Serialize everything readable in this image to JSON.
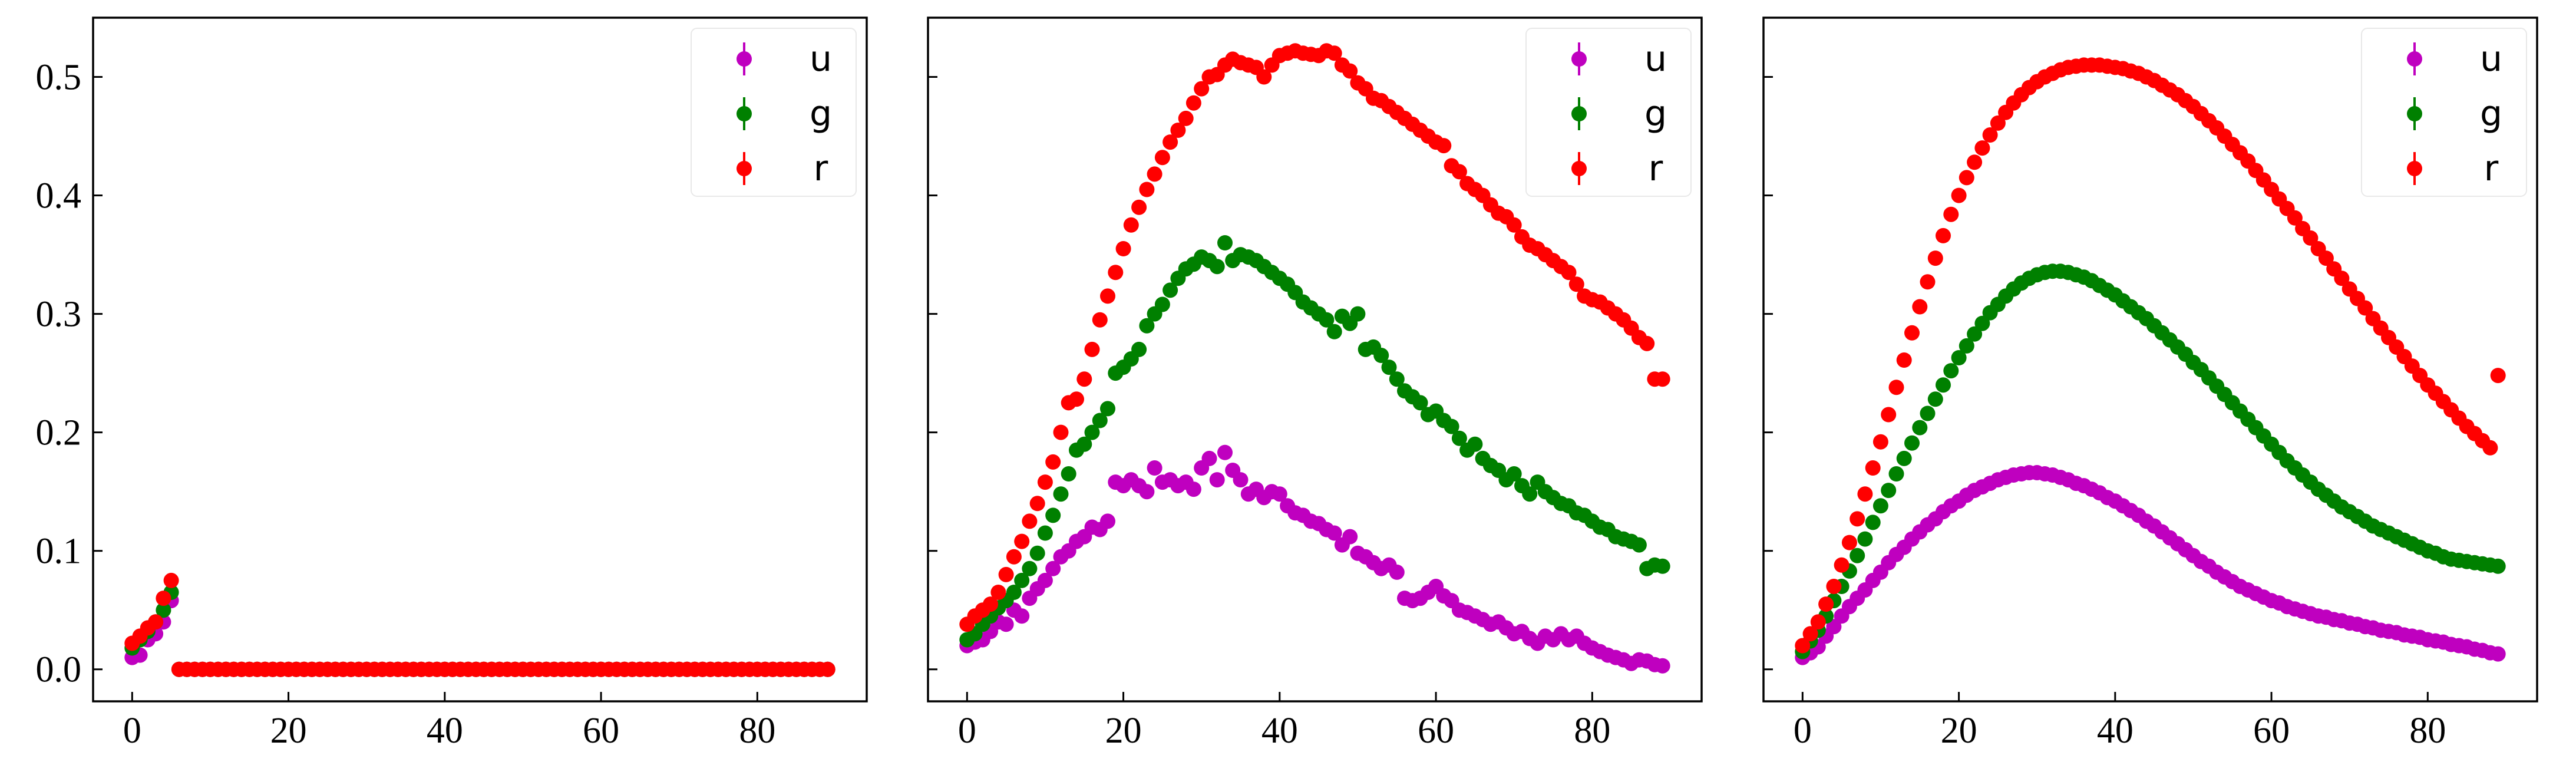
{
  "chart_data": [
    {
      "type": "scatter",
      "panel": 1,
      "title": "",
      "xlabel": "",
      "ylabel": "",
      "xlim": [
        -5,
        94
      ],
      "ylim": [
        -0.027,
        0.55
      ],
      "xticks": [
        0,
        20,
        40,
        60,
        80
      ],
      "yticks": [
        0.0,
        0.1,
        0.2,
        0.3,
        0.4,
        0.5
      ],
      "grid": false,
      "legend_position": "top-right",
      "x": {
        "start": 0,
        "step": 1,
        "count": 90
      },
      "series": [
        {
          "name": "u",
          "color": "#bf00bf",
          "values": [
            0.01,
            0.012,
            0.025,
            0.03,
            0.04,
            0.058,
            0,
            0,
            0,
            0,
            0,
            0,
            0,
            0,
            0,
            0,
            0,
            0,
            0,
            0,
            0,
            0,
            0,
            0,
            0,
            0,
            0,
            0,
            0,
            0,
            0,
            0,
            0,
            0,
            0,
            0,
            0,
            0,
            0,
            0,
            0,
            0,
            0,
            0,
            0,
            0,
            0,
            0,
            0,
            0,
            0,
            0,
            0,
            0,
            0,
            0,
            0,
            0,
            0,
            0,
            0,
            0,
            0,
            0,
            0,
            0,
            0,
            0,
            0,
            0,
            0,
            0,
            0,
            0,
            0,
            0,
            0,
            0,
            0,
            0,
            0,
            0,
            0,
            0,
            0,
            0,
            0,
            0,
            0,
            0
          ]
        },
        {
          "name": "g",
          "color": "#008000",
          "values": [
            0.018,
            0.025,
            0.032,
            0.04,
            0.05,
            0.065,
            0,
            0,
            0,
            0,
            0,
            0,
            0,
            0,
            0,
            0,
            0,
            0,
            0,
            0,
            0,
            0,
            0,
            0,
            0,
            0,
            0,
            0,
            0,
            0,
            0,
            0,
            0,
            0,
            0,
            0,
            0,
            0,
            0,
            0,
            0,
            0,
            0,
            0,
            0,
            0,
            0,
            0,
            0,
            0,
            0,
            0,
            0,
            0,
            0,
            0,
            0,
            0,
            0,
            0,
            0,
            0,
            0,
            0,
            0,
            0,
            0,
            0,
            0,
            0,
            0,
            0,
            0,
            0,
            0,
            0,
            0,
            0,
            0,
            0,
            0,
            0,
            0,
            0,
            0,
            0,
            0,
            0,
            0,
            0
          ]
        },
        {
          "name": "r",
          "color": "#ff0000",
          "values": [
            0.022,
            0.028,
            0.035,
            0.04,
            0.06,
            0.075,
            0,
            0,
            0,
            0,
            0,
            0,
            0,
            0,
            0,
            0,
            0,
            0,
            0,
            0,
            0,
            0,
            0,
            0,
            0,
            0,
            0,
            0,
            0,
            0,
            0,
            0,
            0,
            0,
            0,
            0,
            0,
            0,
            0,
            0,
            0,
            0,
            0,
            0,
            0,
            0,
            0,
            0,
            0,
            0,
            0,
            0,
            0,
            0,
            0,
            0,
            0,
            0,
            0,
            0,
            0,
            0,
            0,
            0,
            0,
            0,
            0,
            0,
            0,
            0,
            0,
            0,
            0,
            0,
            0,
            0,
            0,
            0,
            0,
            0,
            0,
            0,
            0,
            0,
            0,
            0,
            0,
            0,
            0,
            0
          ]
        }
      ]
    },
    {
      "type": "scatter",
      "panel": 2,
      "title": "",
      "xlabel": "",
      "ylabel": "",
      "xlim": [
        -5,
        94
      ],
      "ylim": [
        -0.027,
        0.55
      ],
      "xticks": [
        0,
        20,
        40,
        60,
        80
      ],
      "yticks": [
        0.0,
        0.1,
        0.2,
        0.3,
        0.4,
        0.5
      ],
      "grid": false,
      "legend_position": "top-right",
      "x": {
        "start": 0,
        "step": 1,
        "count": 90
      },
      "series": [
        {
          "name": "u",
          "color": "#bf00bf",
          "values": [
            0.02,
            0.023,
            0.025,
            0.032,
            0.04,
            0.038,
            0.05,
            0.045,
            0.06,
            0.068,
            0.075,
            0.085,
            0.095,
            0.1,
            0.108,
            0.112,
            0.12,
            0.118,
            0.125,
            0.158,
            0.155,
            0.16,
            0.155,
            0.15,
            0.17,
            0.158,
            0.16,
            0.155,
            0.158,
            0.152,
            0.17,
            0.178,
            0.16,
            0.183,
            0.168,
            0.16,
            0.148,
            0.152,
            0.145,
            0.15,
            0.148,
            0.138,
            0.132,
            0.13,
            0.125,
            0.123,
            0.118,
            0.115,
            0.105,
            0.112,
            0.098,
            0.095,
            0.09,
            0.085,
            0.088,
            0.082,
            0.06,
            0.058,
            0.06,
            0.065,
            0.07,
            0.062,
            0.058,
            0.05,
            0.048,
            0.045,
            0.042,
            0.038,
            0.04,
            0.035,
            0.03,
            0.032,
            0.026,
            0.022,
            0.028,
            0.025,
            0.03,
            0.025,
            0.028,
            0.022,
            0.018,
            0.015,
            0.012,
            0.01,
            0.008,
            0.005,
            0.008,
            0.007,
            0.004,
            0.003
          ]
        },
        {
          "name": "g",
          "color": "#008000",
          "values": [
            0.025,
            0.03,
            0.038,
            0.045,
            0.052,
            0.058,
            0.065,
            0.075,
            0.085,
            0.098,
            0.115,
            0.13,
            0.148,
            0.165,
            0.185,
            0.19,
            0.2,
            0.21,
            0.22,
            0.25,
            0.255,
            0.262,
            0.27,
            0.29,
            0.3,
            0.308,
            0.32,
            0.33,
            0.338,
            0.342,
            0.348,
            0.345,
            0.34,
            0.36,
            0.345,
            0.35,
            0.348,
            0.345,
            0.34,
            0.335,
            0.33,
            0.325,
            0.318,
            0.31,
            0.305,
            0.3,
            0.295,
            0.285,
            0.298,
            0.292,
            0.3,
            0.27,
            0.272,
            0.265,
            0.255,
            0.245,
            0.235,
            0.23,
            0.225,
            0.215,
            0.218,
            0.21,
            0.205,
            0.195,
            0.185,
            0.19,
            0.178,
            0.172,
            0.168,
            0.16,
            0.165,
            0.155,
            0.148,
            0.158,
            0.15,
            0.145,
            0.14,
            0.138,
            0.132,
            0.13,
            0.125,
            0.12,
            0.118,
            0.112,
            0.11,
            0.108,
            0.105,
            0.085,
            0.088,
            0.087
          ]
        },
        {
          "name": "r",
          "color": "#ff0000",
          "values": [
            0.038,
            0.045,
            0.05,
            0.055,
            0.065,
            0.08,
            0.095,
            0.108,
            0.125,
            0.14,
            0.158,
            0.175,
            0.2,
            0.225,
            0.228,
            0.245,
            0.27,
            0.295,
            0.315,
            0.335,
            0.355,
            0.375,
            0.39,
            0.405,
            0.418,
            0.432,
            0.445,
            0.455,
            0.465,
            0.478,
            0.49,
            0.5,
            0.502,
            0.51,
            0.515,
            0.512,
            0.51,
            0.508,
            0.5,
            0.51,
            0.518,
            0.52,
            0.522,
            0.52,
            0.519,
            0.518,
            0.522,
            0.52,
            0.51,
            0.505,
            0.495,
            0.49,
            0.482,
            0.48,
            0.475,
            0.47,
            0.465,
            0.46,
            0.455,
            0.45,
            0.445,
            0.442,
            0.425,
            0.42,
            0.41,
            0.405,
            0.4,
            0.392,
            0.385,
            0.382,
            0.375,
            0.365,
            0.358,
            0.355,
            0.35,
            0.345,
            0.34,
            0.335,
            0.325,
            0.315,
            0.312,
            0.31,
            0.305,
            0.3,
            0.295,
            0.288,
            0.28,
            0.275,
            0.245,
            0.245
          ]
        }
      ]
    },
    {
      "type": "scatter",
      "panel": 3,
      "title": "",
      "xlabel": "",
      "ylabel": "",
      "xlim": [
        -5,
        94
      ],
      "ylim": [
        -0.027,
        0.55
      ],
      "xticks": [
        0,
        20,
        40,
        60,
        80
      ],
      "yticks": [
        0.0,
        0.1,
        0.2,
        0.3,
        0.4,
        0.5
      ],
      "grid": false,
      "legend_position": "top-right",
      "x": {
        "start": 0,
        "step": 1,
        "count": 90
      },
      "series": [
        {
          "name": "u",
          "color": "#bf00bf",
          "values": [
            0.01,
            0.014,
            0.019,
            0.028,
            0.036,
            0.045,
            0.053,
            0.06,
            0.067,
            0.075,
            0.082,
            0.09,
            0.097,
            0.103,
            0.11,
            0.116,
            0.122,
            0.127,
            0.133,
            0.138,
            0.142,
            0.147,
            0.151,
            0.154,
            0.157,
            0.16,
            0.162,
            0.164,
            0.165,
            0.166,
            0.166,
            0.165,
            0.164,
            0.162,
            0.16,
            0.157,
            0.155,
            0.152,
            0.149,
            0.145,
            0.142,
            0.138,
            0.134,
            0.13,
            0.125,
            0.121,
            0.116,
            0.111,
            0.106,
            0.101,
            0.096,
            0.091,
            0.087,
            0.082,
            0.078,
            0.074,
            0.07,
            0.067,
            0.064,
            0.061,
            0.058,
            0.056,
            0.053,
            0.051,
            0.049,
            0.047,
            0.045,
            0.044,
            0.042,
            0.041,
            0.039,
            0.038,
            0.036,
            0.035,
            0.033,
            0.032,
            0.031,
            0.029,
            0.028,
            0.027,
            0.025,
            0.024,
            0.023,
            0.021,
            0.02,
            0.019,
            0.017,
            0.016,
            0.014,
            0.013
          ]
        },
        {
          "name": "g",
          "color": "#008000",
          "values": [
            0.015,
            0.024,
            0.033,
            0.045,
            0.058,
            0.07,
            0.083,
            0.096,
            0.11,
            0.124,
            0.138,
            0.151,
            0.165,
            0.178,
            0.191,
            0.204,
            0.216,
            0.228,
            0.24,
            0.252,
            0.263,
            0.273,
            0.283,
            0.292,
            0.301,
            0.308,
            0.315,
            0.321,
            0.326,
            0.33,
            0.333,
            0.335,
            0.336,
            0.336,
            0.335,
            0.333,
            0.331,
            0.328,
            0.324,
            0.32,
            0.316,
            0.311,
            0.306,
            0.301,
            0.296,
            0.29,
            0.284,
            0.278,
            0.272,
            0.266,
            0.259,
            0.253,
            0.246,
            0.239,
            0.232,
            0.225,
            0.218,
            0.211,
            0.204,
            0.197,
            0.19,
            0.183,
            0.176,
            0.17,
            0.164,
            0.158,
            0.152,
            0.147,
            0.142,
            0.137,
            0.133,
            0.129,
            0.125,
            0.121,
            0.118,
            0.115,
            0.112,
            0.109,
            0.106,
            0.103,
            0.1,
            0.098,
            0.095,
            0.093,
            0.092,
            0.091,
            0.09,
            0.089,
            0.088,
            0.087
          ]
        },
        {
          "name": "r",
          "color": "#ff0000",
          "values": [
            0.02,
            0.03,
            0.04,
            0.055,
            0.07,
            0.088,
            0.107,
            0.127,
            0.148,
            0.17,
            0.192,
            0.215,
            0.238,
            0.261,
            0.284,
            0.306,
            0.327,
            0.347,
            0.366,
            0.384,
            0.4,
            0.415,
            0.428,
            0.44,
            0.451,
            0.461,
            0.47,
            0.478,
            0.485,
            0.491,
            0.496,
            0.5,
            0.503,
            0.506,
            0.508,
            0.509,
            0.51,
            0.51,
            0.51,
            0.509,
            0.508,
            0.507,
            0.505,
            0.503,
            0.5,
            0.497,
            0.493,
            0.489,
            0.485,
            0.48,
            0.475,
            0.469,
            0.463,
            0.457,
            0.45,
            0.443,
            0.436,
            0.429,
            0.421,
            0.413,
            0.405,
            0.397,
            0.389,
            0.381,
            0.372,
            0.364,
            0.355,
            0.347,
            0.338,
            0.33,
            0.321,
            0.313,
            0.305,
            0.296,
            0.288,
            0.28,
            0.272,
            0.264,
            0.256,
            0.248,
            0.24,
            0.233,
            0.226,
            0.219,
            0.212,
            0.205,
            0.199,
            0.193,
            0.187,
            0.248
          ]
        }
      ]
    }
  ]
}
